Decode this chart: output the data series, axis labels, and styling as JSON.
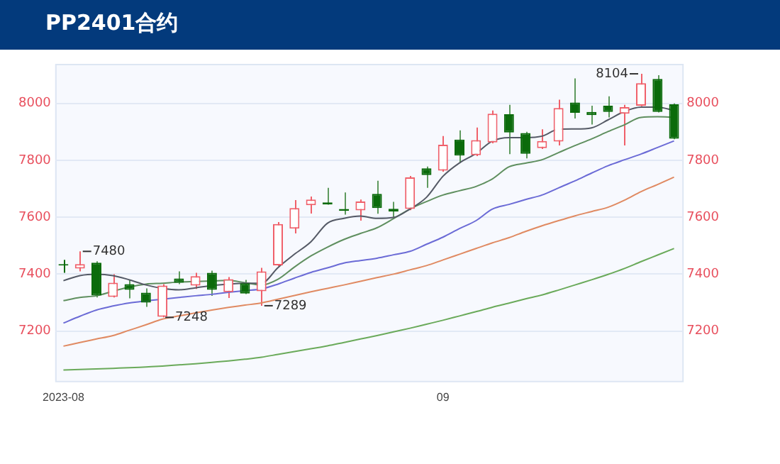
{
  "chart_data": {
    "type": "candlestick",
    "title": "PP2401合约",
    "categories": [
      "2023-08",
      null,
      null,
      null,
      null,
      null,
      null,
      null,
      null,
      null,
      null,
      null,
      null,
      null,
      null,
      null,
      null,
      null,
      null,
      null,
      null,
      null,
      null,
      "09",
      null,
      null,
      null,
      null,
      null,
      null,
      null,
      null,
      null,
      null,
      null,
      null,
      null,
      null
    ],
    "ohlc": [
      [
        7430,
        7450,
        7405,
        7430
      ],
      [
        7420,
        7480,
        7410,
        7435
      ],
      [
        7440,
        7445,
        7318,
        7325
      ],
      [
        7320,
        7400,
        7318,
        7370
      ],
      [
        7365,
        7380,
        7315,
        7345
      ],
      [
        7335,
        7350,
        7285,
        7300
      ],
      [
        7250,
        7365,
        7248,
        7360
      ],
      [
        7385,
        7410,
        7365,
        7370
      ],
      [
        7360,
        7405,
        7348,
        7393
      ],
      [
        7405,
        7412,
        7324,
        7345
      ],
      [
        7337,
        7390,
        7316,
        7382
      ],
      [
        7368,
        7380,
        7330,
        7332
      ],
      [
        7340,
        7422,
        7289,
        7410
      ],
      [
        7431,
        7583,
        7428,
        7576
      ],
      [
        7560,
        7660,
        7543,
        7632
      ],
      [
        7642,
        7673,
        7613,
        7662
      ],
      [
        7652,
        7703,
        7644,
        7645
      ],
      [
        7629,
        7687,
        7609,
        7622
      ],
      [
        7624,
        7662,
        7588,
        7655
      ],
      [
        7682,
        7728,
        7612,
        7632
      ],
      [
        7630,
        7654,
        7593,
        7620
      ],
      [
        7629,
        7745,
        7625,
        7740
      ],
      [
        7772,
        7778,
        7703,
        7748
      ],
      [
        7764,
        7885,
        7760,
        7855
      ],
      [
        7873,
        7905,
        7790,
        7817
      ],
      [
        7818,
        7915,
        7815,
        7871
      ],
      [
        7863,
        7975,
        7860,
        7964
      ],
      [
        7962,
        7995,
        7822,
        7898
      ],
      [
        7896,
        7900,
        7807,
        7823
      ],
      [
        7843,
        7909,
        7840,
        7868
      ],
      [
        7866,
        8013,
        7852,
        7984
      ],
      [
        8003,
        8088,
        7947,
        7967
      ],
      [
        7970,
        7992,
        7926,
        7959
      ],
      [
        7992,
        8025,
        7951,
        7970
      ],
      [
        7964,
        7995,
        7852,
        7987
      ],
      [
        7992,
        8104,
        7990,
        8071
      ],
      [
        8086,
        8099,
        7968,
        7970
      ],
      [
        7997,
        8000,
        7874,
        7876
      ]
    ],
    "series": [
      {
        "type": "line",
        "color": "#555a66",
        "values": [
          7377,
          7395,
          7400,
          7395,
          7380,
          7362,
          7350,
          7345,
          7352,
          7360,
          7365,
          7368,
          7368,
          7423,
          7470,
          7514,
          7579,
          7596,
          7604,
          7596,
          7599,
          7629,
          7670,
          7744,
          7791,
          7824,
          7868,
          7880,
          7880,
          7885,
          7909,
          7910,
          7914,
          7942,
          7972,
          7987,
          7987,
          7975
        ]
      },
      {
        "type": "line",
        "color": "#5f8f5f",
        "values": [
          7307,
          7318,
          7324,
          7340,
          7355,
          7365,
          7368,
          7372,
          7374,
          7376,
          7378,
          7370,
          7362,
          7382,
          7425,
          7464,
          7495,
          7522,
          7543,
          7563,
          7595,
          7629,
          7655,
          7678,
          7693,
          7708,
          7735,
          7777,
          7790,
          7802,
          7827,
          7852,
          7875,
          7901,
          7925,
          7951,
          7953,
          7951
        ]
      },
      {
        "type": "line",
        "color": "#6b6bd6",
        "values": [
          7228,
          7252,
          7274,
          7288,
          7299,
          7306,
          7312,
          7318,
          7324,
          7329,
          7336,
          7342,
          7348,
          7365,
          7386,
          7406,
          7422,
          7439,
          7448,
          7456,
          7468,
          7480,
          7505,
          7530,
          7560,
          7588,
          7629,
          7645,
          7662,
          7678,
          7703,
          7728,
          7755,
          7781,
          7802,
          7822,
          7845,
          7868
        ]
      },
      {
        "type": "line",
        "color": "#e08a62",
        "values": [
          7147,
          7160,
          7172,
          7184,
          7203,
          7222,
          7242,
          7253,
          7264,
          7274,
          7283,
          7291,
          7299,
          7312,
          7325,
          7338,
          7350,
          7362,
          7375,
          7388,
          7400,
          7415,
          7430,
          7450,
          7470,
          7490,
          7510,
          7528,
          7550,
          7570,
          7588,
          7605,
          7620,
          7635,
          7660,
          7690,
          7715,
          7741
        ]
      },
      {
        "type": "line",
        "color": "#6aaa5a",
        "values": [
          7063,
          7065,
          7067,
          7069,
          7071,
          7074,
          7077,
          7081,
          7085,
          7090,
          7095,
          7101,
          7108,
          7118,
          7128,
          7138,
          7148,
          7160,
          7172,
          7184,
          7197,
          7210,
          7224,
          7238,
          7253,
          7268,
          7284,
          7298,
          7313,
          7327,
          7344,
          7362,
          7380,
          7399,
          7420,
          7444,
          7467,
          7490
        ]
      }
    ],
    "ylim": [
      7025,
      8139
    ],
    "yticks": [
      7200,
      7400,
      7600,
      7800,
      8000
    ],
    "y2lim": [
      7025,
      8139
    ],
    "y2ticks": [
      7200,
      7400,
      7600,
      7800,
      8000
    ],
    "grid": "y",
    "legend": false,
    "marker": "none",
    "annotations": [
      "7480",
      "7248",
      "7289",
      "8104"
    ]
  }
}
